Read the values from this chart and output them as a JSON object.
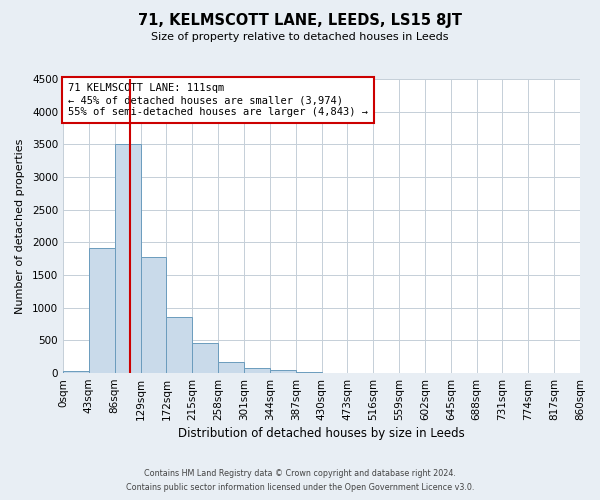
{
  "title": "71, KELMSCOTT LANE, LEEDS, LS15 8JT",
  "subtitle": "Size of property relative to detached houses in Leeds",
  "xlabel": "Distribution of detached houses by size in Leeds",
  "ylabel": "Number of detached properties",
  "bin_edges": [
    0,
    43,
    86,
    129,
    172,
    215,
    258,
    301,
    344,
    387,
    430,
    473,
    516,
    559,
    602,
    645,
    688,
    731,
    774,
    817,
    860
  ],
  "bar_heights": [
    30,
    1920,
    3500,
    1770,
    860,
    460,
    175,
    80,
    40,
    15,
    5,
    0,
    0,
    0,
    0,
    0,
    0,
    0,
    0,
    0
  ],
  "bar_color": "#c9daea",
  "bar_edgecolor": "#6b9cbd",
  "property_line_x": 111,
  "property_line_color": "#cc0000",
  "annotation_text": "71 KELMSCOTT LANE: 111sqm\n← 45% of detached houses are smaller (3,974)\n55% of semi-detached houses are larger (4,843) →",
  "annotation_box_edgecolor": "#cc0000",
  "annotation_box_facecolor": "#ffffff",
  "ylim": [
    0,
    4500
  ],
  "tick_labels": [
    "0sqm",
    "43sqm",
    "86sqm",
    "129sqm",
    "172sqm",
    "215sqm",
    "258sqm",
    "301sqm",
    "344sqm",
    "387sqm",
    "430sqm",
    "473sqm",
    "516sqm",
    "559sqm",
    "602sqm",
    "645sqm",
    "688sqm",
    "731sqm",
    "774sqm",
    "817sqm",
    "860sqm"
  ],
  "footer_line1": "Contains HM Land Registry data © Crown copyright and database right 2024.",
  "footer_line2": "Contains public sector information licensed under the Open Government Licence v3.0.",
  "background_color": "#e8eef4",
  "plot_background_color": "#ffffff",
  "grid_color": "#c5cfd8"
}
